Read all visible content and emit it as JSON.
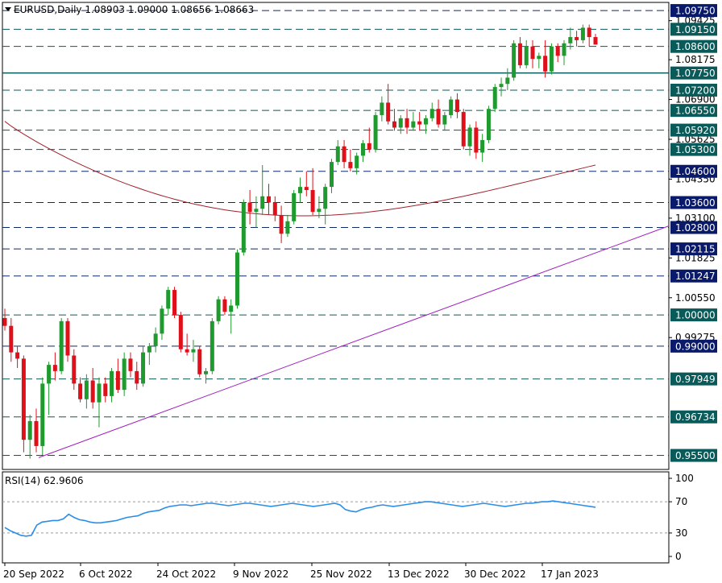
{
  "header": {
    "symbol_line": "EURUSD,Daily  1.08903 1.09000 1.08656 1.08663"
  },
  "rsi": {
    "label": "RSI(14) 62.9606",
    "levels": [
      "100",
      "70",
      "30",
      "0"
    ],
    "values": [
      37,
      33,
      30,
      27,
      26,
      27,
      40,
      44,
      45,
      46,
      46,
      48,
      54,
      50,
      47,
      46,
      44,
      43,
      43,
      44,
      45,
      46,
      48,
      50,
      51,
      52,
      55,
      57,
      58,
      59,
      62,
      64,
      65,
      66,
      66,
      65,
      66,
      67,
      68,
      68,
      67,
      66,
      65,
      66,
      67,
      68,
      68,
      67,
      66,
      65,
      64,
      65,
      66,
      67,
      68,
      67,
      66,
      65,
      64,
      65,
      66,
      67,
      68,
      66,
      60,
      58,
      57,
      60,
      62,
      63,
      65,
      66,
      65,
      64,
      65,
      66,
      67,
      68,
      69,
      70,
      70,
      69,
      68,
      67,
      66,
      65,
      64,
      65,
      66,
      67,
      68,
      67,
      66,
      65,
      64,
      65,
      66,
      67,
      68,
      68,
      69,
      70,
      70,
      71,
      70,
      69,
      68,
      67,
      66,
      65,
      64,
      63
    ]
  },
  "x_axis": {
    "labels": [
      "20 Sep 2022",
      "6 Oct 2022",
      "24 Oct 2022",
      "9 Nov 2022",
      "25 Nov 2022",
      "13 Dec 2022",
      "30 Dec 2022",
      "17 Jan 2023"
    ]
  },
  "price_axis": {
    "labels": [
      "1.09425",
      "1.08175",
      "1.06900",
      "1.05625",
      "1.04350",
      "1.03100",
      "1.01825",
      "1.00550",
      "0.99275"
    ],
    "badges": [
      "1.09750",
      "1.09150",
      "1.08600",
      "1.07750",
      "1.07200",
      "1.06550",
      "1.05920",
      "1.05300",
      "1.04600",
      "1.03600",
      "1.02800",
      "1.02115",
      "1.01247",
      "1.00000",
      "0.99000",
      "0.97949",
      "0.96734",
      "0.95500"
    ]
  },
  "chart_data": {
    "type": "candlestick",
    "symbol": "EURUSD",
    "timeframe": "Daily",
    "current": {
      "open": 1.08903,
      "high": 1.09,
      "low": 1.08656,
      "close": 1.08663
    },
    "x_labels": [
      "20 Sep 2022",
      "6 Oct 2022",
      "24 Oct 2022",
      "9 Nov 2022",
      "25 Nov 2022",
      "13 Dec 2022",
      "30 Dec 2022",
      "17 Jan 2023"
    ],
    "ylim": [
      0.9505,
      1.1001
    ],
    "levels": [
      {
        "value": 1.0975,
        "style": "dashed",
        "color": "#0a2a6a"
      },
      {
        "value": 1.0915,
        "style": "dashed",
        "color": "#0a5a5a"
      },
      {
        "value": 1.086,
        "style": "dashed",
        "color": "#0a5a5a"
      },
      {
        "value": 1.0775,
        "style": "solid",
        "color": "#0a5a5a"
      },
      {
        "value": 1.072,
        "style": "dashed",
        "color": "#0a5a5a"
      },
      {
        "value": 1.0655,
        "style": "dashed",
        "color": "#0a5a5a"
      },
      {
        "value": 1.0592,
        "style": "dashed",
        "color": "#0a5a5a"
      },
      {
        "value": 1.053,
        "style": "dashed",
        "color": "#0a5a5a"
      },
      {
        "value": 1.046,
        "style": "dashed",
        "color": "#0a2a6a"
      },
      {
        "value": 1.036,
        "style": "dashed",
        "color": "#0a2a6a"
      },
      {
        "value": 1.028,
        "style": "dashed",
        "color": "#0a2a6a"
      },
      {
        "value": 1.02115,
        "style": "dashed",
        "color": "#0a2a6a"
      },
      {
        "value": 1.01247,
        "style": "dashed",
        "color": "#0a2a6a"
      },
      {
        "value": 1.0,
        "style": "dashed",
        "color": "#0a5a5a"
      },
      {
        "value": 0.99,
        "style": "dashed",
        "color": "#0a2a6a"
      },
      {
        "value": 0.97949,
        "style": "dashed",
        "color": "#0a5a5a"
      },
      {
        "value": 0.96734,
        "style": "dashed",
        "color": "#0a5a5a"
      },
      {
        "value": 0.955,
        "style": "dashed",
        "color": "#0a5a5a"
      }
    ],
    "candles": [
      [
        0.999,
        1.002,
        0.995,
        0.9965
      ],
      [
        0.9965,
        0.999,
        0.985,
        0.988
      ],
      [
        0.988,
        0.99,
        0.983,
        0.986
      ],
      [
        0.986,
        0.987,
        0.956,
        0.96
      ],
      [
        0.96,
        0.968,
        0.954,
        0.966
      ],
      [
        0.966,
        0.97,
        0.956,
        0.958
      ],
      [
        0.958,
        0.98,
        0.955,
        0.978
      ],
      [
        0.978,
        0.985,
        0.968,
        0.984
      ],
      [
        0.984,
        0.988,
        0.979,
        0.982
      ],
      [
        0.982,
        0.999,
        0.981,
        0.998
      ],
      [
        0.998,
        0.999,
        0.985,
        0.987
      ],
      [
        0.987,
        0.989,
        0.976,
        0.978
      ],
      [
        0.978,
        0.98,
        0.972,
        0.973
      ],
      [
        0.973,
        0.981,
        0.97,
        0.979
      ],
      [
        0.979,
        0.983,
        0.97,
        0.972
      ],
      [
        0.972,
        0.98,
        0.964,
        0.978
      ],
      [
        0.978,
        0.98,
        0.972,
        0.974
      ],
      [
        0.974,
        0.983,
        0.972,
        0.982
      ],
      [
        0.982,
        0.986,
        0.975,
        0.976
      ],
      [
        0.976,
        0.988,
        0.974,
        0.986
      ],
      [
        0.986,
        0.988,
        0.98,
        0.982
      ],
      [
        0.982,
        0.985,
        0.976,
        0.978
      ],
      [
        0.978,
        0.99,
        0.977,
        0.988
      ],
      [
        0.988,
        0.991,
        0.984,
        0.99
      ],
      [
        0.99,
        0.996,
        0.988,
        0.994
      ],
      [
        0.994,
        1.003,
        0.992,
        1.002
      ],
      [
        1.002,
        1.009,
        1.0,
        1.008
      ],
      [
        1.008,
        1.009,
        0.999,
        1.0
      ],
      [
        1.0,
        1.001,
        0.988,
        0.989
      ],
      [
        0.989,
        0.994,
        0.987,
        0.988
      ],
      [
        0.988,
        0.992,
        0.985,
        0.989
      ],
      [
        0.989,
        0.99,
        0.98,
        0.981
      ],
      [
        0.981,
        0.983,
        0.978,
        0.982
      ],
      [
        0.982,
        0.999,
        0.981,
        0.998
      ],
      [
        0.998,
        1.006,
        0.997,
        1.005
      ],
      [
        1.005,
        1.006,
        1.0,
        1.001
      ],
      [
        1.001,
        1.005,
        0.994,
        1.003
      ],
      [
        1.003,
        1.021,
        1.002,
        1.02
      ],
      [
        1.02,
        1.037,
        1.019,
        1.036
      ],
      [
        1.036,
        1.04,
        1.029,
        1.033
      ],
      [
        1.033,
        1.038,
        1.028,
        1.034
      ],
      [
        1.034,
        1.048,
        1.032,
        1.038
      ],
      [
        1.038,
        1.042,
        1.032,
        1.036
      ],
      [
        1.036,
        1.038,
        1.03,
        1.032
      ],
      [
        1.032,
        1.035,
        1.023,
        1.026
      ],
      [
        1.026,
        1.032,
        1.025,
        1.03
      ],
      [
        1.03,
        1.04,
        1.029,
        1.039
      ],
      [
        1.039,
        1.044,
        1.036,
        1.041
      ],
      [
        1.041,
        1.046,
        1.038,
        1.04
      ],
      [
        1.04,
        1.047,
        1.032,
        1.033
      ],
      [
        1.033,
        1.038,
        1.031,
        1.034
      ],
      [
        1.034,
        1.042,
        1.029,
        1.041
      ],
      [
        1.041,
        1.05,
        1.039,
        1.049
      ],
      [
        1.049,
        1.056,
        1.048,
        1.054
      ],
      [
        1.054,
        1.056,
        1.047,
        1.049
      ],
      [
        1.049,
        1.053,
        1.046,
        1.047
      ],
      [
        1.047,
        1.052,
        1.045,
        1.051
      ],
      [
        1.051,
        1.056,
        1.049,
        1.055
      ],
      [
        1.055,
        1.06,
        1.052,
        1.053
      ],
      [
        1.053,
        1.065,
        1.052,
        1.064
      ],
      [
        1.064,
        1.07,
        1.062,
        1.068
      ],
      [
        1.068,
        1.074,
        1.061,
        1.062
      ],
      [
        1.062,
        1.066,
        1.059,
        1.06
      ],
      [
        1.06,
        1.064,
        1.058,
        1.063
      ],
      [
        1.063,
        1.066,
        1.058,
        1.06
      ],
      [
        1.06,
        1.065,
        1.059,
        1.062
      ],
      [
        1.062,
        1.065,
        1.059,
        1.061
      ],
      [
        1.061,
        1.064,
        1.058,
        1.063
      ],
      [
        1.063,
        1.068,
        1.062,
        1.066
      ],
      [
        1.066,
        1.069,
        1.06,
        1.061
      ],
      [
        1.061,
        1.065,
        1.059,
        1.064
      ],
      [
        1.064,
        1.07,
        1.063,
        1.069
      ],
      [
        1.069,
        1.071,
        1.063,
        1.065
      ],
      [
        1.065,
        1.066,
        1.053,
        1.054
      ],
      [
        1.054,
        1.061,
        1.051,
        1.06
      ],
      [
        1.06,
        1.062,
        1.05,
        1.052
      ],
      [
        1.052,
        1.058,
        1.049,
        1.056
      ],
      [
        1.056,
        1.067,
        1.055,
        1.066
      ],
      [
        1.066,
        1.074,
        1.065,
        1.073
      ],
      [
        1.073,
        1.076,
        1.07,
        1.074
      ],
      [
        1.074,
        1.079,
        1.072,
        1.076
      ],
      [
        1.076,
        1.088,
        1.075,
        1.087
      ],
      [
        1.087,
        1.089,
        1.079,
        1.08
      ],
      [
        1.08,
        1.088,
        1.079,
        1.086
      ],
      [
        1.086,
        1.088,
        1.079,
        1.082
      ],
      [
        1.082,
        1.084,
        1.079,
        1.083
      ],
      [
        1.083,
        1.088,
        1.076,
        1.078
      ],
      [
        1.078,
        1.087,
        1.077,
        1.086
      ],
      [
        1.086,
        1.087,
        1.081,
        1.083
      ],
      [
        1.083,
        1.088,
        1.08,
        1.087
      ],
      [
        1.087,
        1.092,
        1.085,
        1.089
      ],
      [
        1.089,
        1.091,
        1.086,
        1.088
      ],
      [
        1.088,
        1.093,
        1.087,
        1.092
      ],
      [
        1.092,
        1.093,
        1.086,
        1.089
      ],
      [
        1.089,
        1.09,
        1.0866,
        1.0866
      ]
    ],
    "ma_color": "#a0202a",
    "trendline_color": "#a020c0"
  }
}
